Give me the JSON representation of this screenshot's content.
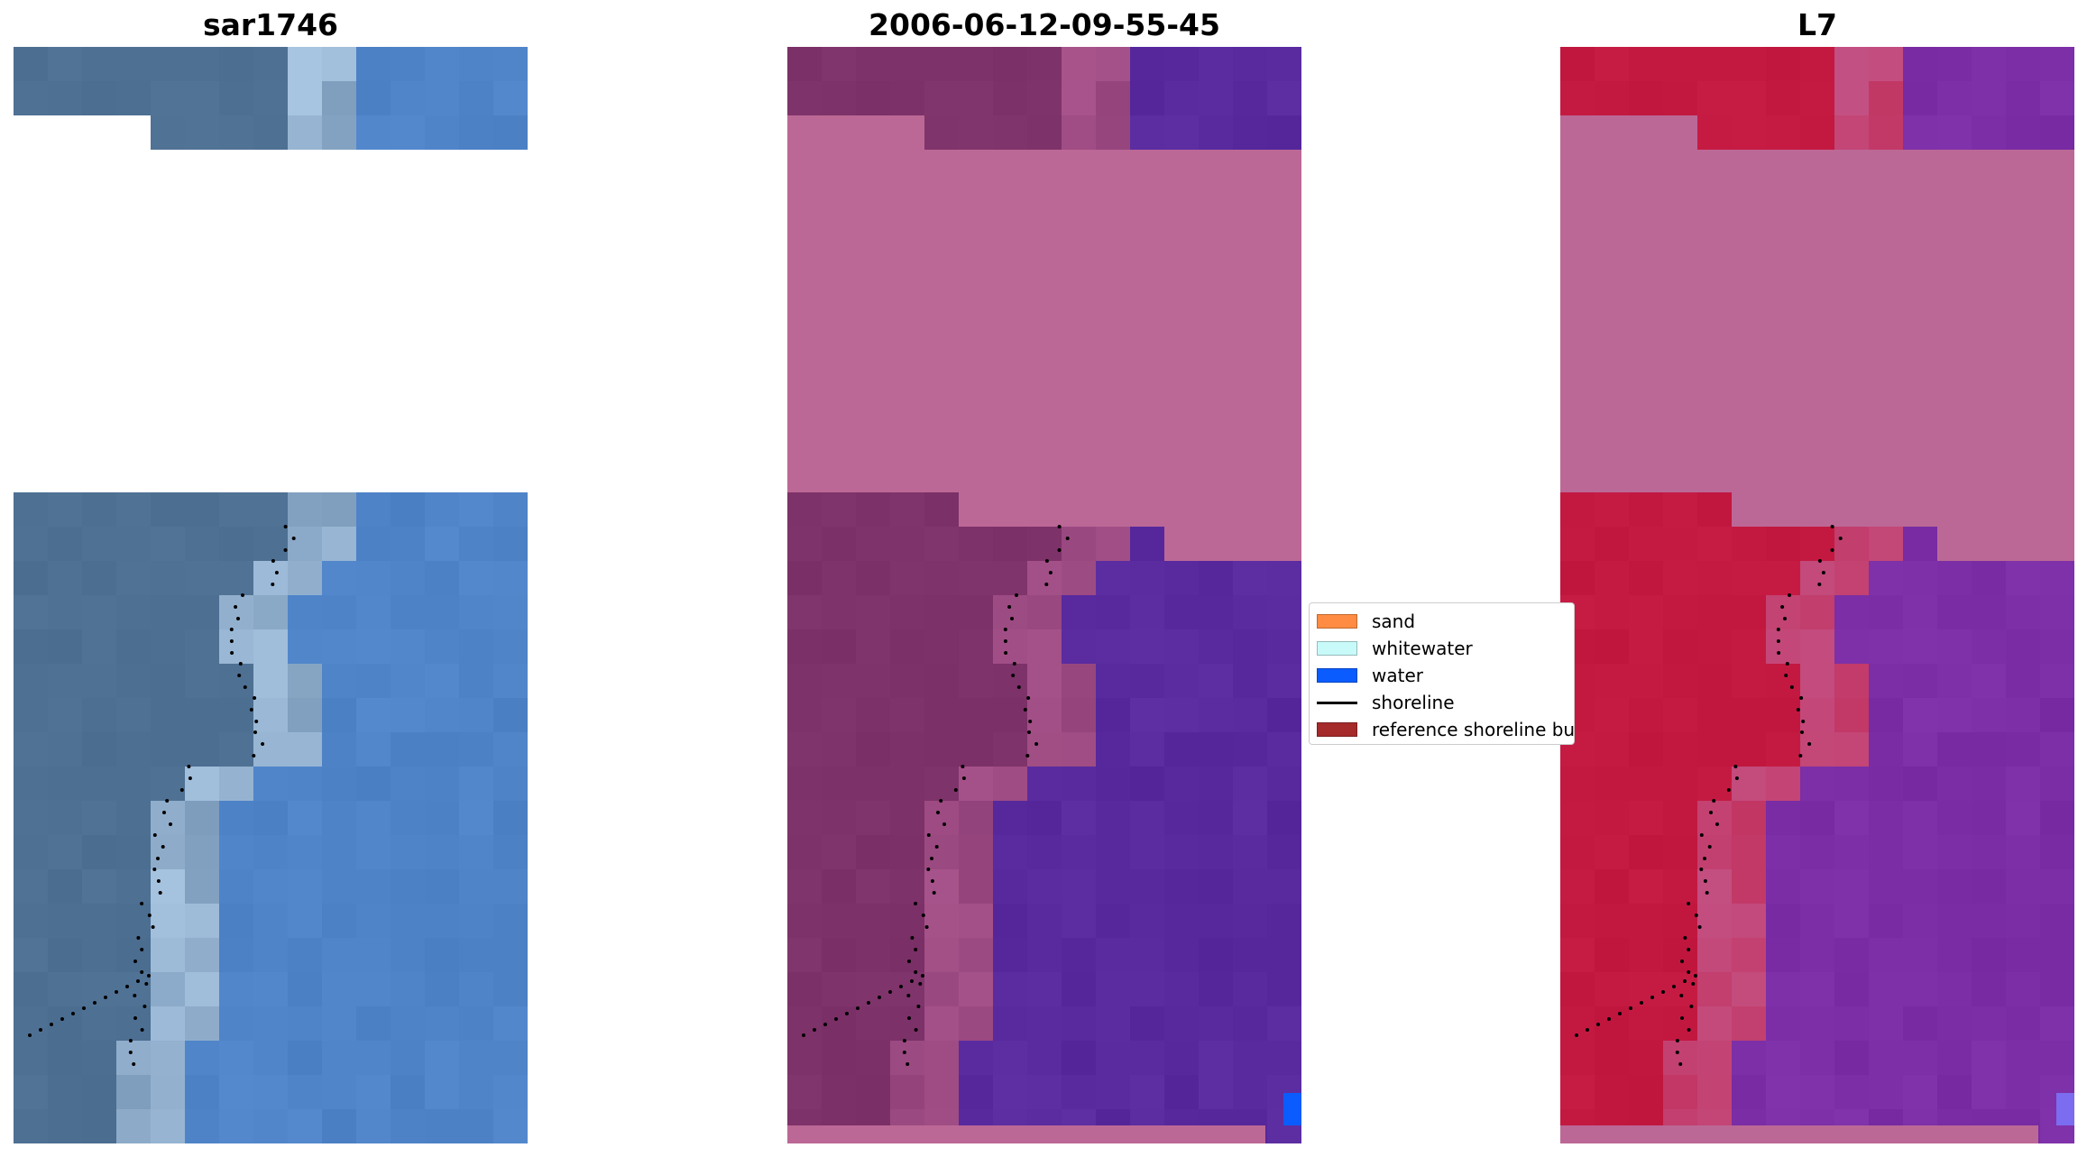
{
  "panels": [
    {
      "title": "sar1746",
      "kind": "rgb"
    },
    {
      "title": "2006-06-12-09-55-45",
      "kind": "classified"
    },
    {
      "title": "L7",
      "kind": "ndwi"
    }
  ],
  "legend": {
    "items": [
      {
        "label": "sand",
        "color": "#ff8c42",
        "type": "patch"
      },
      {
        "label": "whitewater",
        "color": "#c8fafa",
        "type": "patch"
      },
      {
        "label": "water",
        "color": "#0b5cff",
        "type": "patch"
      },
      {
        "label": "shoreline",
        "color": "#000000",
        "type": "line"
      },
      {
        "label": "reference shoreline buffer",
        "color": "#a52a2a",
        "type": "patch"
      }
    ]
  },
  "colors": {
    "nodata_overlay": "#bc6896",
    "rgb_land": "#4b6d90",
    "rgb_water": "#4a7fc4",
    "class_land": "#7a2f66",
    "class_water": "#532599",
    "ndwi_land": "#c0163e",
    "ndwi_water": "#7629a0"
  }
}
